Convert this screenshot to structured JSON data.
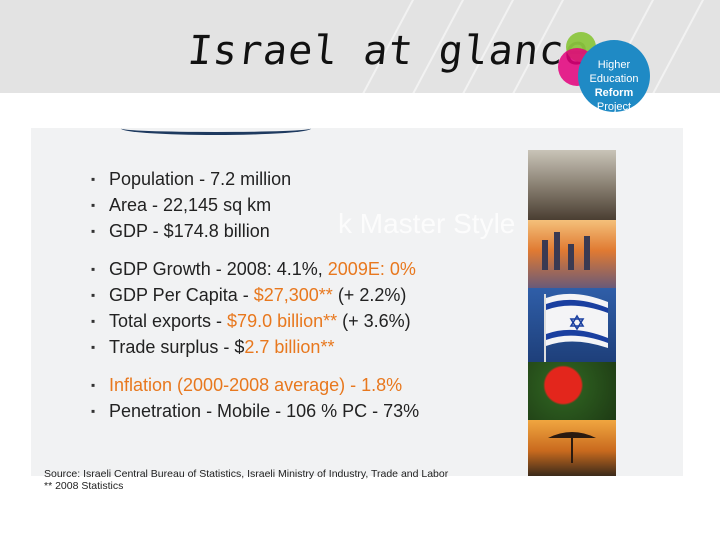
{
  "title": "Israel at glance",
  "logo": {
    "line1": "Higher",
    "line2": "Education",
    "line3": "Reform",
    "line4": "Project"
  },
  "bullets_group1": [
    {
      "text": "Population - 7.2 million"
    },
    {
      "text": "Area - 22,145 sq km"
    },
    {
      "text": "GDP - $174.8 billion"
    }
  ],
  "bullets_group2": [
    {
      "prefix": "GDP Growth - 2008: 4.1%, ",
      "highlight": "2009E: 0%",
      "suffix": ""
    },
    {
      "prefix": "GDP Per Capita - ",
      "highlight": "$27,300**",
      "suffix": " (+ 2.2%)"
    },
    {
      "prefix": "Total exports - ",
      "highlight": "$79.0 billion**",
      "suffix": " (+ 3.6%)"
    },
    {
      "prefix": "Trade surplus - $",
      "highlight": "2.7 billion**",
      "suffix": ""
    }
  ],
  "bullets_group3": [
    {
      "prefix": "",
      "highlight": "Inflation (2000-2008 average) - 1.8%",
      "suffix": ""
    },
    {
      "prefix": "Penetration - Mobile - 106 % PC - 73%",
      "highlight": "",
      "suffix": ""
    }
  ],
  "source_line1": "Source: Israeli Central Bureau of Statistics, Israeli Ministry of Industry, Trade and Labor",
  "source_line2": "** 2008 Statistics",
  "faint_text": "k Master    Style",
  "colors": {
    "highlight": "#e8781e",
    "logo_blue": "#1f8ac5",
    "logo_pink": "#e4007c",
    "logo_green": "#8cc63f"
  }
}
